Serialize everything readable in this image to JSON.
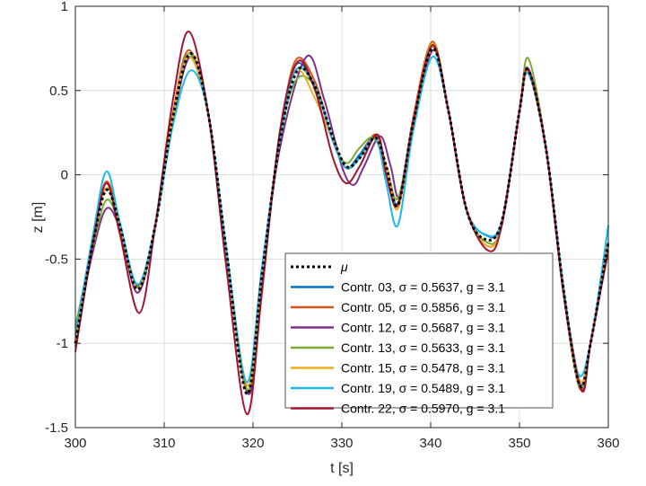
{
  "chart_data": {
    "type": "line",
    "xlabel": "t [s]",
    "ylabel": "z [m]",
    "xlim": [
      300,
      360
    ],
    "ylim": [
      -1.5,
      1
    ],
    "xticks": [
      300,
      310,
      320,
      330,
      340,
      350,
      360
    ],
    "yticks": [
      -1.5,
      -1,
      -0.5,
      0,
      0.5,
      1
    ],
    "xtick_labels": [
      "300",
      "310",
      "320",
      "330",
      "340",
      "350",
      "360"
    ],
    "ytick_labels": [
      "-1.5",
      "-1",
      "-0.5",
      "0",
      "0.5",
      "1"
    ],
    "grid": true,
    "legend_position": "bottom-right",
    "mean": {
      "name": "μ",
      "color": "#000000",
      "x": [
        300,
        302,
        303.5,
        305,
        307,
        309,
        311,
        313,
        315,
        317,
        319.3,
        321,
        323,
        325,
        327,
        329,
        330.5,
        332,
        333.8,
        335,
        336.3,
        338,
        340.2,
        342,
        344,
        346,
        348,
        350,
        351,
        353,
        355,
        356.8,
        358,
        360
      ],
      "y": [
        -1.0,
        -0.4,
        -0.09,
        -0.3,
        -0.68,
        -0.3,
        0.35,
        0.72,
        0.35,
        -0.45,
        -1.3,
        -0.6,
        0.2,
        0.62,
        0.52,
        0.22,
        0.05,
        0.1,
        0.22,
        0.05,
        -0.18,
        0.3,
        0.75,
        0.38,
        -0.2,
        -0.38,
        -0.28,
        0.38,
        0.62,
        0.15,
        -0.7,
        -1.25,
        -1.0,
        -0.4
      ]
    },
    "series": [
      {
        "name": "Contr. 03, σ = 0.5637, g = 3.1",
        "color": "#0072BD",
        "x": [
          300,
          302,
          303.5,
          305,
          307,
          309,
          311,
          312.8,
          315,
          317,
          319.4,
          321,
          323,
          324.8,
          327,
          329,
          330.5,
          332,
          333.8,
          335,
          336.3,
          338,
          340.2,
          342,
          344,
          346.3,
          348,
          350,
          350.9,
          353,
          355,
          356.8,
          358,
          360
        ],
        "y": [
          -1.0,
          -0.38,
          -0.08,
          -0.3,
          -0.66,
          -0.3,
          0.35,
          0.7,
          0.35,
          -0.45,
          -1.28,
          -0.6,
          0.2,
          0.65,
          0.52,
          0.2,
          0.04,
          0.12,
          0.23,
          0.05,
          -0.17,
          0.32,
          0.76,
          0.38,
          -0.2,
          -0.36,
          -0.28,
          0.38,
          0.63,
          0.15,
          -0.7,
          -1.24,
          -1.0,
          -0.4
        ]
      },
      {
        "name": "Contr. 05, σ = 0.5856, g = 3.1",
        "color": "#D95319",
        "x": [
          300,
          302,
          303.5,
          305,
          307,
          309,
          311,
          312.8,
          315,
          317,
          319.4,
          321,
          323,
          324.8,
          327,
          329,
          330.5,
          332,
          333.8,
          335,
          336.3,
          338,
          340.2,
          342,
          344,
          346.3,
          348,
          350,
          350.9,
          353,
          355,
          356.8,
          358,
          360
        ],
        "y": [
          -1.02,
          -0.36,
          -0.04,
          -0.3,
          -0.7,
          -0.3,
          0.37,
          0.74,
          0.35,
          -0.46,
          -1.3,
          -0.6,
          0.22,
          0.68,
          0.55,
          0.2,
          0.04,
          0.1,
          0.24,
          0.05,
          -0.2,
          0.33,
          0.79,
          0.38,
          -0.2,
          -0.42,
          -0.3,
          0.38,
          0.63,
          0.15,
          -0.72,
          -1.27,
          -1.0,
          -0.42
        ]
      },
      {
        "name": "Contr. 12, σ = 0.5687, g = 3.1",
        "color": "#7E2F8E",
        "x": [
          300,
          302,
          303.5,
          305,
          307,
          309,
          311,
          313,
          315,
          317,
          319.5,
          321,
          323,
          326,
          328,
          330,
          331.3,
          332.5,
          334.3,
          335.5,
          336.5,
          338,
          340.3,
          342,
          344,
          346.3,
          348,
          350,
          351,
          353,
          355,
          357,
          358,
          360
        ],
        "y": [
          -0.95,
          -0.45,
          -0.2,
          -0.32,
          -0.7,
          -0.3,
          0.33,
          0.7,
          0.35,
          -0.45,
          -1.3,
          -0.62,
          0.15,
          0.7,
          0.45,
          0.05,
          -0.06,
          0.05,
          0.23,
          0.05,
          -0.13,
          0.3,
          0.74,
          0.38,
          -0.2,
          -0.42,
          -0.3,
          0.38,
          0.63,
          0.15,
          -0.7,
          -1.27,
          -1.0,
          -0.42
        ]
      },
      {
        "name": "Contr. 13, σ = 0.5633, g = 3.1",
        "color": "#77AC30",
        "x": [
          300,
          302,
          303.5,
          305,
          307,
          309,
          311,
          312.8,
          315,
          317,
          319.4,
          321,
          323,
          324.8,
          327,
          329,
          330.5,
          332,
          333.6,
          335,
          336.3,
          338,
          340.2,
          342,
          344,
          346.3,
          348,
          350,
          351,
          353,
          355,
          356.8,
          358,
          360
        ],
        "y": [
          -0.9,
          -0.42,
          -0.15,
          -0.3,
          -0.65,
          -0.3,
          0.35,
          0.72,
          0.35,
          -0.45,
          -1.28,
          -0.58,
          0.2,
          0.56,
          0.52,
          0.2,
          0.07,
          0.16,
          0.22,
          0.05,
          -0.14,
          0.3,
          0.76,
          0.38,
          -0.2,
          -0.4,
          -0.3,
          0.38,
          0.69,
          0.15,
          -0.72,
          -1.26,
          -1.0,
          -0.42
        ]
      },
      {
        "name": "Contr. 15, σ = 0.5478, g = 3.1",
        "color": "#EDB120",
        "x": [
          300,
          302,
          303.5,
          305,
          307,
          309,
          311,
          312.8,
          315,
          317,
          319.4,
          321,
          323,
          324.8,
          327,
          329,
          330.5,
          332,
          333.8,
          335,
          336.3,
          338,
          340.2,
          342,
          344,
          346.3,
          348,
          350,
          350.9,
          353,
          355,
          356.8,
          358,
          360
        ],
        "y": [
          -0.98,
          -0.37,
          -0.08,
          -0.3,
          -0.67,
          -0.3,
          0.35,
          0.7,
          0.35,
          -0.45,
          -1.25,
          -0.58,
          0.2,
          0.62,
          0.45,
          0.2,
          0.04,
          0.1,
          0.22,
          0.05,
          -0.2,
          0.3,
          0.78,
          0.38,
          -0.2,
          -0.42,
          -0.3,
          0.38,
          0.62,
          0.15,
          -0.7,
          -1.22,
          -1.0,
          -0.42
        ]
      },
      {
        "name": "Contr. 19, σ = 0.5489, g = 3.1",
        "color": "#1EB7EA",
        "x": [
          300,
          302,
          303.5,
          305,
          307,
          309,
          311,
          313,
          315,
          317,
          319.3,
          321,
          323,
          324.8,
          327,
          329,
          330.5,
          332,
          333.8,
          335,
          336.3,
          338,
          340.2,
          342,
          344,
          346,
          348,
          350,
          351,
          353,
          355,
          356.6,
          358,
          360
        ],
        "y": [
          -0.95,
          -0.35,
          0.02,
          -0.28,
          -0.65,
          -0.3,
          0.3,
          0.62,
          0.35,
          -0.45,
          -1.23,
          -0.55,
          0.2,
          0.62,
          0.52,
          0.2,
          0.04,
          0.1,
          0.22,
          -0.05,
          -0.3,
          0.25,
          0.7,
          0.38,
          -0.2,
          -0.35,
          -0.28,
          0.38,
          0.6,
          0.15,
          -0.68,
          -1.18,
          -1.0,
          -0.3
        ]
      },
      {
        "name": "Contr. 22, σ = 0.5970, g = 3.1",
        "color": "#A2142F",
        "x": [
          300,
          302,
          303.5,
          305,
          307.2,
          309,
          311,
          312.8,
          315,
          317,
          319.3,
          321,
          323,
          325,
          327,
          329,
          330.5,
          332,
          334,
          335,
          336.3,
          338,
          340.2,
          342,
          344,
          346.5,
          348,
          350,
          351,
          353,
          355,
          357,
          358,
          360
        ],
        "y": [
          -1.05,
          -0.4,
          -0.05,
          -0.35,
          -0.82,
          -0.3,
          0.45,
          0.85,
          0.35,
          -0.55,
          -1.42,
          -0.7,
          0.25,
          0.67,
          0.5,
          0.1,
          -0.05,
          0.05,
          0.24,
          0.0,
          -0.18,
          0.3,
          0.77,
          0.38,
          -0.2,
          -0.45,
          -0.3,
          0.38,
          0.62,
          0.15,
          -0.72,
          -1.28,
          -1.0,
          -0.45
        ]
      }
    ]
  }
}
